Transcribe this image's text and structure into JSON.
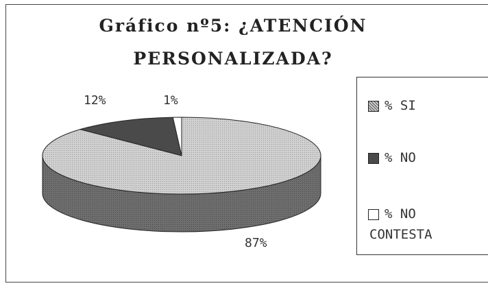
{
  "chart_data": {
    "type": "pie",
    "title": "Gráfico nº5: ¿ATENCIÓN PERSONALIZADA?",
    "title_line1": "Gráfico nº5: ¿ATENCIÓN",
    "title_line2": "PERSONALIZADA?",
    "slices": [
      {
        "label": "% SI",
        "value": 87,
        "display": "87%",
        "color": "#c8c8c8",
        "side_color": "#7a7a7a"
      },
      {
        "label": "% NO",
        "value": 12,
        "display": "12%",
        "color": "#4a4a4a",
        "side_color": "#2e2e2e"
      },
      {
        "label": "% NO CONTESTA",
        "value": 1,
        "display": "1%",
        "color": "#ffffff",
        "side_color": "#dddddd"
      }
    ],
    "legend_position": "right",
    "style": "3d-pie"
  },
  "legend": {
    "items": [
      {
        "line1": "% SI",
        "line2": ""
      },
      {
        "line1": "% NO",
        "line2": ""
      },
      {
        "line1": "% NO",
        "line2": "CONTESTA"
      }
    ]
  }
}
